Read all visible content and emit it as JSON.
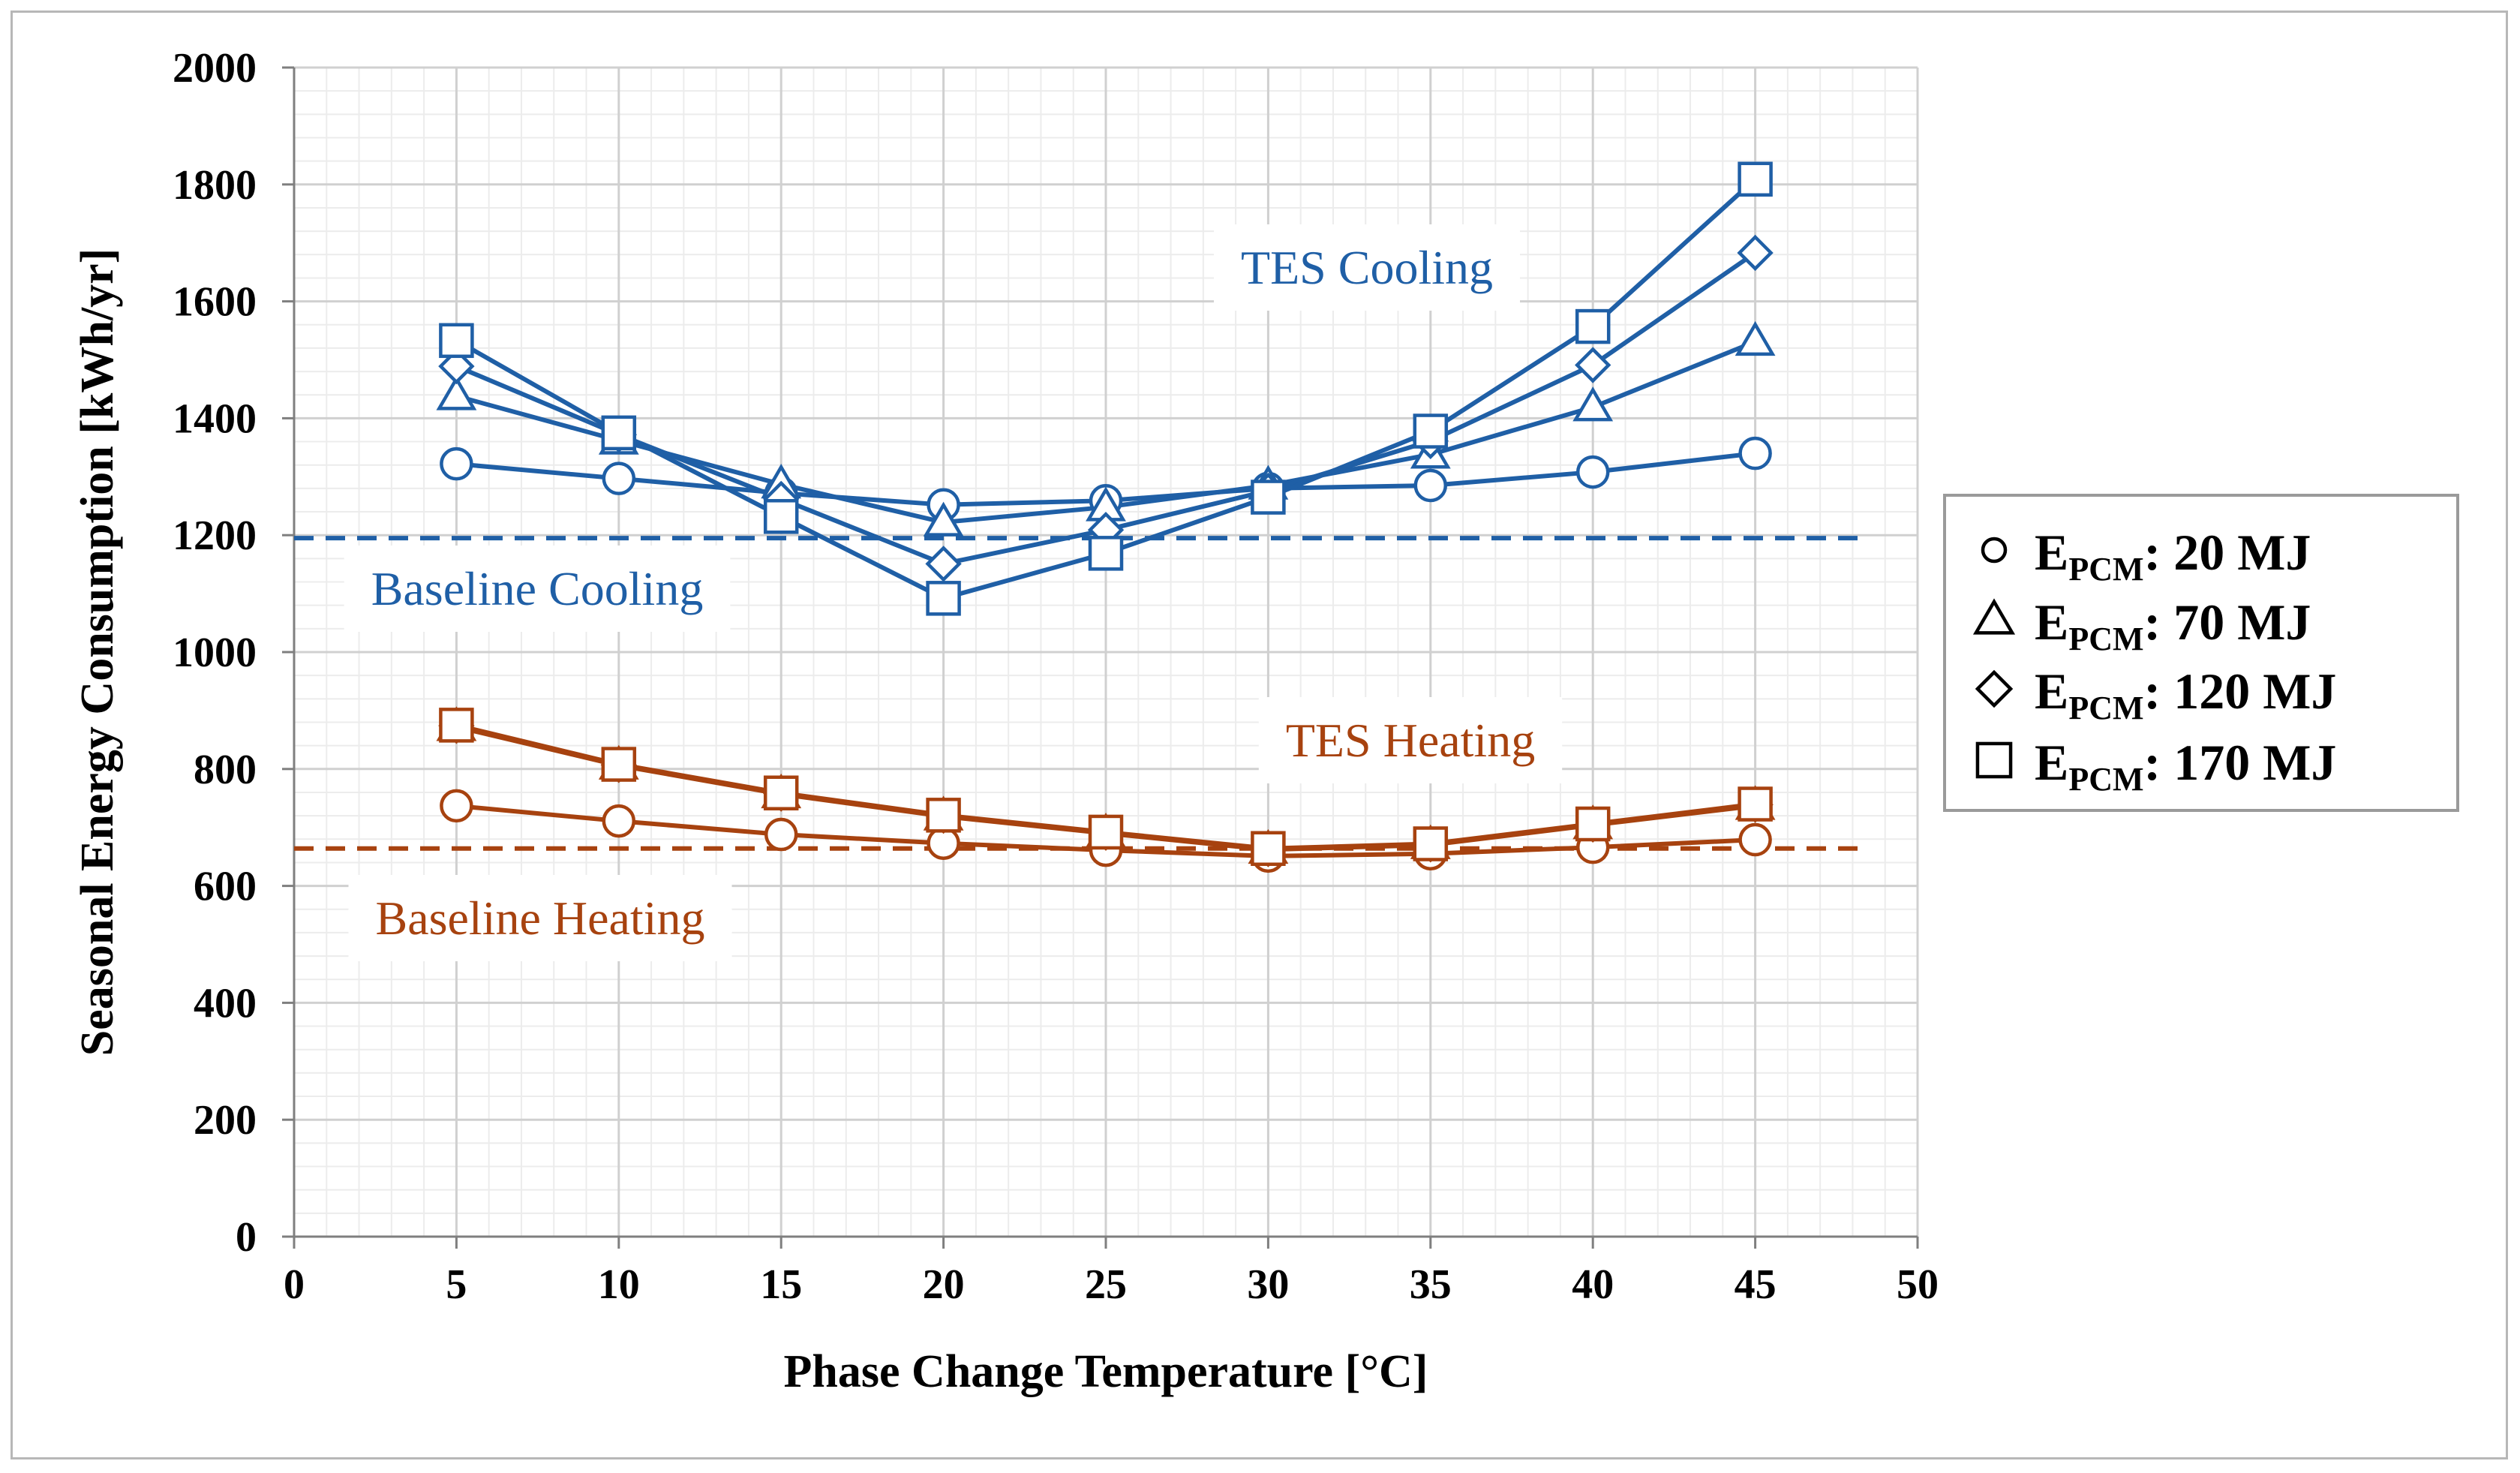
{
  "chart_data": {
    "type": "line",
    "title": "",
    "xlabel": "Phase Change Temperature [°C]",
    "ylabel": "Seasonal Energy Consumption [kWh/yr]",
    "xlim": [
      0,
      50
    ],
    "ylim": [
      0,
      2000
    ],
    "xticks": [
      0,
      5,
      10,
      15,
      20,
      25,
      30,
      35,
      40,
      45,
      50
    ],
    "yticks": [
      0,
      200,
      400,
      600,
      800,
      1000,
      1200,
      1400,
      1600,
      1800,
      2000
    ],
    "grid": true,
    "x": [
      5,
      10,
      15,
      20,
      25,
      30,
      35,
      40,
      45
    ],
    "colors": {
      "cooling": "#1f5fa6",
      "heating": "#a7420f",
      "major_grid": "#d0d0d0",
      "minor_grid": "#ececec",
      "axis": "#7f7f7f"
    },
    "series": [
      {
        "name": "TES Cooling, E_PCM 20 MJ",
        "group": "cooling",
        "marker": "circle",
        "values": [
          1322,
          1297,
          1272,
          1252,
          1259,
          1280,
          1285,
          1308,
          1340
        ]
      },
      {
        "name": "TES Cooling, E_PCM 70 MJ",
        "group": "cooling",
        "marker": "triangle",
        "values": [
          1438,
          1362,
          1287,
          1222,
          1248,
          1285,
          1338,
          1419,
          1531
        ]
      },
      {
        "name": "TES Cooling, E_PCM 120 MJ",
        "group": "cooling",
        "marker": "diamond",
        "values": [
          1489,
          1372,
          1262,
          1151,
          1209,
          1276,
          1361,
          1491,
          1683
        ]
      },
      {
        "name": "TES Cooling, E_PCM 170 MJ",
        "group": "cooling",
        "marker": "square",
        "values": [
          1533,
          1375,
          1232,
          1092,
          1169,
          1265,
          1378,
          1557,
          1809
        ]
      },
      {
        "name": "TES Heating, E_PCM 20 MJ",
        "group": "heating",
        "marker": "circle",
        "values": [
          737,
          711,
          688,
          673,
          661,
          651,
          655,
          666,
          679
        ]
      },
      {
        "name": "TES Heating, E_PCM 70 MJ",
        "group": "heating",
        "marker": "triangle",
        "values": [
          872,
          806,
          757,
          719,
          690,
          662,
          670,
          704,
          737
        ]
      },
      {
        "name": "TES Heating, E_PCM 120 MJ",
        "group": "heating",
        "marker": "diamond",
        "values": [
          874,
          807,
          758,
          720,
          691,
          663,
          671,
          705,
          739
        ]
      },
      {
        "name": "TES Heating, E_PCM 170 MJ",
        "group": "heating",
        "marker": "square",
        "values": [
          875,
          808,
          759,
          721,
          692,
          664,
          672,
          706,
          740
        ]
      }
    ],
    "baselines": [
      {
        "name": "Baseline Cooling",
        "group": "cooling",
        "value": 1195
      },
      {
        "name": "Baseline Heating",
        "group": "heating",
        "value": 664
      }
    ],
    "annotations": [
      {
        "text": "TES Cooling",
        "group": "cooling"
      },
      {
        "text": "Baseline Cooling",
        "group": "cooling"
      },
      {
        "text": "TES Heating",
        "group": "heating"
      },
      {
        "text": "Baseline Heating",
        "group": "heating"
      }
    ],
    "legend": {
      "placement": "right",
      "entries": [
        {
          "marker": "circle",
          "prefix": "E",
          "sub": "PCM",
          "suffix": ": 20 MJ"
        },
        {
          "marker": "triangle",
          "prefix": "E",
          "sub": "PCM",
          "suffix": ": 70 MJ"
        },
        {
          "marker": "diamond",
          "prefix": "E",
          "sub": "PCM",
          "suffix": ": 120 MJ"
        },
        {
          "marker": "square",
          "prefix": "E",
          "sub": "PCM",
          "suffix": ": 170 MJ"
        }
      ]
    }
  }
}
